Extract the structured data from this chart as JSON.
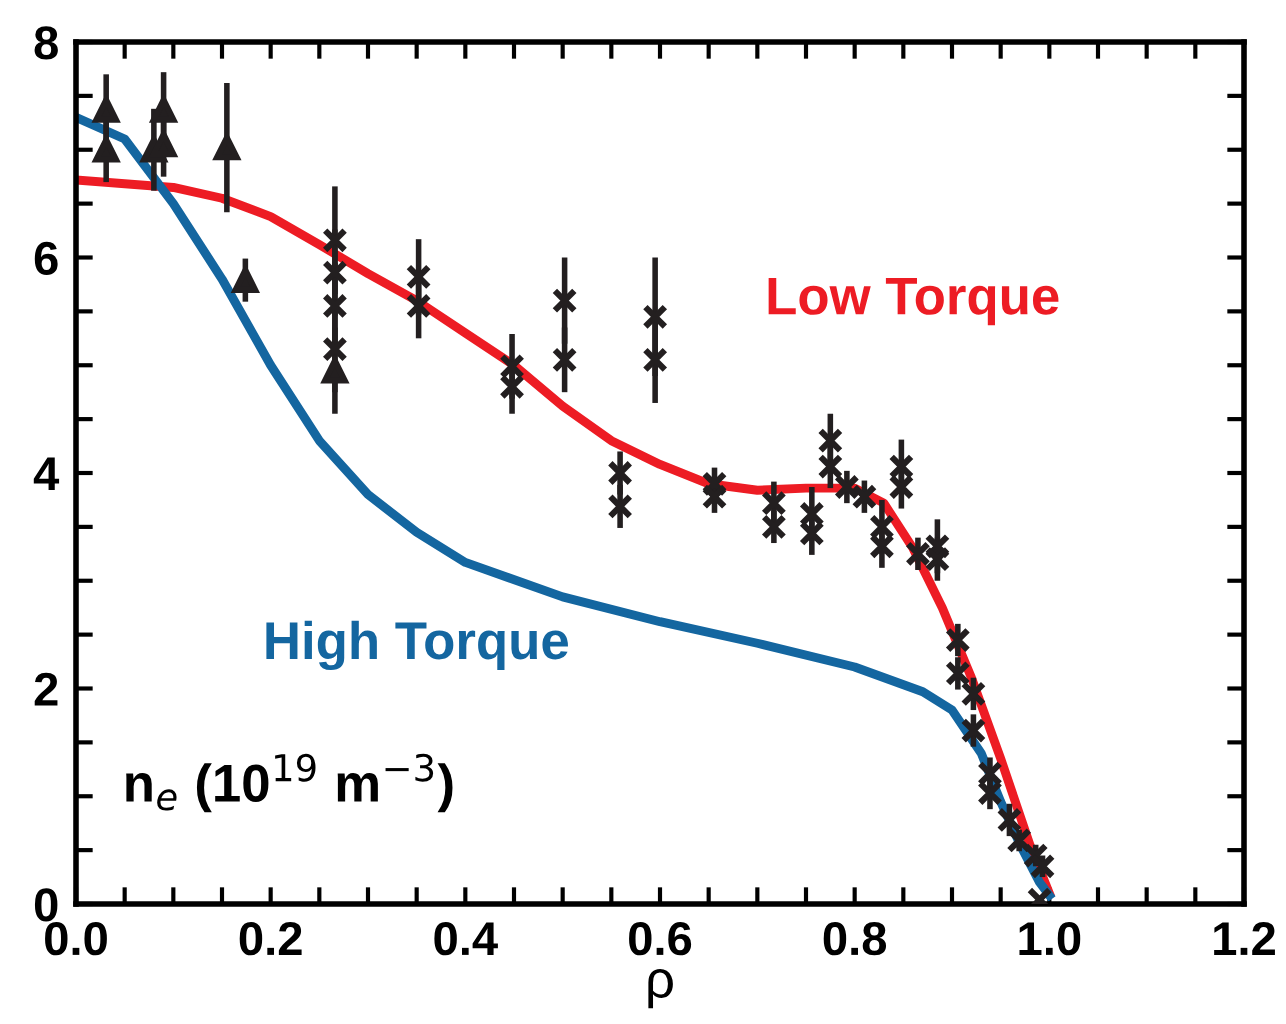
{
  "chart_data": {
    "type": "line",
    "xlabel": "ρ",
    "ylabel": "n$_{e}$ (10$^{19}$ m$^{−3}$)",
    "xlim": [
      0,
      1.2
    ],
    "ylim": [
      0,
      8
    ],
    "xticks": [
      {
        "value": 0,
        "label": "0.0"
      },
      {
        "value": 0.05,
        "label": null
      },
      {
        "value": 0.1,
        "label": null
      },
      {
        "value": 0.15,
        "label": null
      },
      {
        "value": 0.2,
        "label": "0.2"
      },
      {
        "value": 0.25,
        "label": null
      },
      {
        "value": 0.3,
        "label": null
      },
      {
        "value": 0.35,
        "label": null
      },
      {
        "value": 0.4,
        "label": "0.4"
      },
      {
        "value": 0.45,
        "label": null
      },
      {
        "value": 0.5,
        "label": null
      },
      {
        "value": 0.55,
        "label": null
      },
      {
        "value": 0.6,
        "label": "0.6"
      },
      {
        "value": 0.65,
        "label": null
      },
      {
        "value": 0.7,
        "label": null
      },
      {
        "value": 0.75,
        "label": null
      },
      {
        "value": 0.8,
        "label": "0.8"
      },
      {
        "value": 0.85,
        "label": null
      },
      {
        "value": 0.9,
        "label": null
      },
      {
        "value": 0.95,
        "label": null
      },
      {
        "value": 1.0,
        "label": "1.0"
      },
      {
        "value": 1.05,
        "label": null
      },
      {
        "value": 1.1,
        "label": null
      },
      {
        "value": 1.15,
        "label": null
      },
      {
        "value": 1.2,
        "label": "1.2"
      }
    ],
    "yticks": [
      0,
      {
        "value": 0.5,
        "label": null
      },
      {
        "value": 1,
        "label": null
      },
      {
        "value": 1.5,
        "label": null
      },
      2,
      {
        "value": 2.5,
        "label": null
      },
      {
        "value": 3,
        "label": null
      },
      {
        "value": 3.5,
        "label": null
      },
      4,
      {
        "value": 4.5,
        "label": null
      },
      {
        "value": 5,
        "label": null
      },
      {
        "value": 5.5,
        "label": null
      },
      6,
      {
        "value": 6.5,
        "label": null
      },
      {
        "value": 7,
        "label": null
      },
      {
        "value": 7.5,
        "label": null
      },
      8
    ],
    "grid": false,
    "legend": false,
    "series": [
      {
        "type": "scatter",
        "marker": "triangle",
        "color": "#231f20",
        "x": [
          0.031,
          0.031,
          0.08,
          0.09,
          0.09,
          0.155,
          0.174,
          0.266
        ],
        "values": [
          7.37,
          7.0,
          7.0,
          7.37,
          7.05,
          7.02,
          5.79,
          4.95
        ],
        "errors": [
          0.33,
          0.3,
          0.38,
          0.35,
          0.3,
          0.6,
          0.2,
          0.4
        ]
      },
      {
        "type": "scatter",
        "marker": "cross",
        "color": "#231f20",
        "x": [
          0.266,
          0.266,
          0.266,
          0.266,
          0.352,
          0.352,
          0.448,
          0.448,
          0.502,
          0.502,
          0.595,
          0.595,
          0.559,
          0.559,
          0.656,
          0.656,
          0.717,
          0.717,
          0.756,
          0.756,
          0.775,
          0.775,
          0.792,
          0.81,
          0.828,
          0.828,
          0.848,
          0.848,
          0.865,
          0.885,
          0.885,
          0.906,
          0.906,
          0.922,
          0.922,
          0.939,
          0.939,
          0.959,
          0.969,
          0.986,
          0.993,
          0.99
        ],
        "values": [
          6.16,
          5.86,
          5.55,
          5.15,
          5.82,
          5.55,
          4.99,
          4.8,
          5.6,
          5.05,
          5.45,
          5.05,
          4.0,
          3.69,
          3.9,
          3.78,
          3.72,
          3.5,
          3.62,
          3.44,
          4.3,
          4.06,
          3.87,
          3.78,
          3.5,
          3.32,
          4.06,
          3.87,
          3.25,
          3.32,
          3.2,
          2.45,
          2.14,
          1.95,
          1.61,
          1.21,
          1.03,
          0.78,
          0.59,
          0.45,
          0.35,
          0.04
        ],
        "errors": [
          0.5,
          0.4,
          0.4,
          0.4,
          0.35,
          0.3,
          0.3,
          0.25,
          0.4,
          0.3,
          0.55,
          0.4,
          0.2,
          0.2,
          0.15,
          0.15,
          0.2,
          0.15,
          0.25,
          0.2,
          0.25,
          0.2,
          0.15,
          0.15,
          0.25,
          0.2,
          0.25,
          0.2,
          0.15,
          0.25,
          0.2,
          0.15,
          0.15,
          0.15,
          0.15,
          0.15,
          0.15,
          0.15,
          0.1,
          0.1,
          0.1,
          null
        ]
      },
      {
        "name": "Low Torque",
        "color": "#ed1c24",
        "x": [
          0,
          0.1,
          0.15,
          0.2,
          0.25,
          0.3,
          0.35,
          0.4,
          0.45,
          0.5,
          0.55,
          0.6,
          0.65,
          0.7,
          0.75,
          0.8,
          0.83,
          0.86,
          0.89,
          0.92,
          0.95,
          0.98,
          1.0
        ],
        "values": [
          6.72,
          6.65,
          6.55,
          6.38,
          6.12,
          5.85,
          5.6,
          5.3,
          5.0,
          4.62,
          4.3,
          4.08,
          3.9,
          3.84,
          3.86,
          3.86,
          3.72,
          3.3,
          2.75,
          2.1,
          1.35,
          0.55,
          0.1
        ]
      },
      {
        "name": "High Torque",
        "color": "#1466a0",
        "x": [
          0,
          0.05,
          0.1,
          0.15,
          0.2,
          0.25,
          0.3,
          0.35,
          0.4,
          0.5,
          0.6,
          0.7,
          0.8,
          0.87,
          0.9,
          0.93,
          0.95,
          0.97,
          0.99,
          1.0
        ],
        "values": [
          7.3,
          7.1,
          6.5,
          5.8,
          5.0,
          4.3,
          3.8,
          3.45,
          3.17,
          2.85,
          2.62,
          2.42,
          2.2,
          1.97,
          1.8,
          1.4,
          0.95,
          0.55,
          0.2,
          0.08
        ]
      }
    ]
  }
}
